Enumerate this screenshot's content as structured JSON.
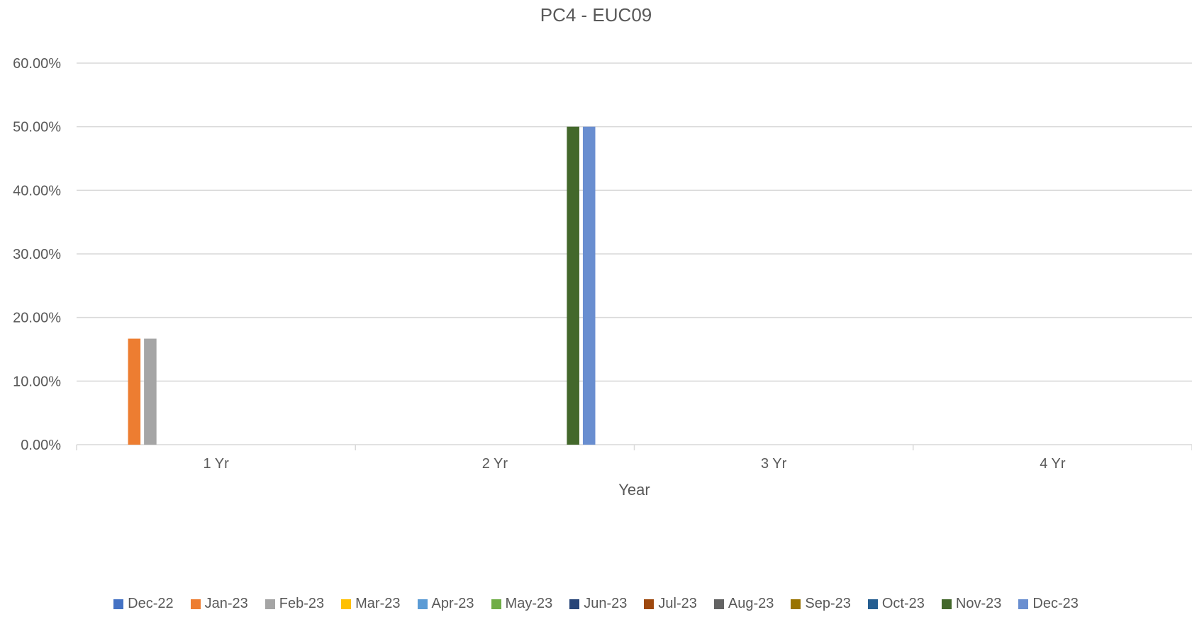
{
  "chart_data": {
    "type": "bar",
    "title": "PC4 - EUC09",
    "xlabel": "Year",
    "ylabel": "",
    "categories": [
      "1 Yr",
      "2 Yr",
      "3 Yr",
      "4 Yr"
    ],
    "ylim": [
      0,
      0.6
    ],
    "yticks": [
      0,
      0.1,
      0.2,
      0.3,
      0.4,
      0.5,
      0.6
    ],
    "ytick_labels": [
      "0.00%",
      "10.00%",
      "20.00%",
      "30.00%",
      "40.00%",
      "50.00%",
      "60.00%"
    ],
    "grid": true,
    "legend_position": "bottom",
    "series": [
      {
        "name": "Dec-22",
        "color": "#4472C4",
        "values": [
          0,
          0,
          0,
          0
        ]
      },
      {
        "name": "Jan-23",
        "color": "#ED7D31",
        "values": [
          0.1667,
          0,
          0,
          0
        ]
      },
      {
        "name": "Feb-23",
        "color": "#A5A5A5",
        "values": [
          0.1667,
          0,
          0,
          0
        ]
      },
      {
        "name": "Mar-23",
        "color": "#FFC000",
        "values": [
          0,
          0,
          0,
          0
        ]
      },
      {
        "name": "Apr-23",
        "color": "#5B9BD5",
        "values": [
          0,
          0,
          0,
          0
        ]
      },
      {
        "name": "May-23",
        "color": "#70AD47",
        "values": [
          0,
          0,
          0,
          0
        ]
      },
      {
        "name": "Jun-23",
        "color": "#264478",
        "values": [
          0,
          0,
          0,
          0
        ]
      },
      {
        "name": "Jul-23",
        "color": "#9E480E",
        "values": [
          0,
          0,
          0,
          0
        ]
      },
      {
        "name": "Aug-23",
        "color": "#636363",
        "values": [
          0,
          0,
          0,
          0
        ]
      },
      {
        "name": "Sep-23",
        "color": "#997300",
        "values": [
          0,
          0,
          0,
          0
        ]
      },
      {
        "name": "Oct-23",
        "color": "#255E91",
        "values": [
          0,
          0,
          0,
          0
        ]
      },
      {
        "name": "Nov-23",
        "color": "#43682B",
        "values": [
          0,
          0.5,
          0,
          0
        ]
      },
      {
        "name": "Dec-23",
        "color": "#698ED0",
        "values": [
          0,
          0.5,
          0,
          0
        ]
      }
    ]
  }
}
